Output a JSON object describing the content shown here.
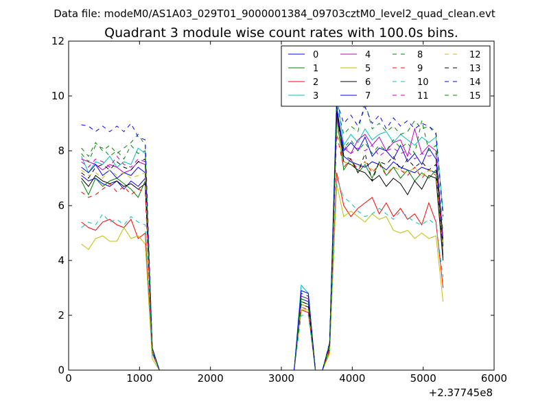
{
  "figure": {
    "suptitle": "Data file: modeM0/AS1A03_029T01_9000001384_09703cztM0_level2_quad_clean.evt",
    "x_offset_label": "+2.37745e8"
  },
  "chart_data": {
    "type": "line",
    "title": "Quadrant 3 module wise count rates with 100.0s bins.",
    "xlabel": "",
    "ylabel": "",
    "xlim": [
      0,
      6000
    ],
    "ylim": [
      0,
      12
    ],
    "x_ticks": [
      "0",
      "1000",
      "2000",
      "3000",
      "4000",
      "5000",
      "6000"
    ],
    "y_ticks": [
      "0",
      "2",
      "4",
      "6",
      "8",
      "10",
      "12"
    ],
    "grid": false,
    "legend_position": "top-right",
    "legend_columns": 4,
    "x_offset": 237745000,
    "x": [
      180,
      280,
      380,
      480,
      580,
      680,
      780,
      880,
      980,
      1080,
      1180,
      1280,
      1380,
      1480,
      1580,
      1680,
      1780,
      1880,
      1980,
      2080,
      2180,
      2280,
      2380,
      2480,
      2580,
      2680,
      2780,
      2880,
      2980,
      3080,
      3180,
      3280,
      3380,
      3480,
      3580,
      3680,
      3780,
      3880,
      3980,
      4080,
      4180,
      4280,
      4380,
      4480,
      4580,
      4680,
      4780,
      4880,
      4980,
      5080,
      5180,
      5280
    ],
    "series": [
      {
        "name": "0",
        "color": "#0000ff",
        "dash": "solid",
        "values": [
          7.1,
          6.9,
          7.0,
          6.8,
          6.7,
          6.9,
          6.6,
          6.9,
          6.7,
          7.0,
          0.7,
          0,
          0,
          0,
          0,
          0,
          0,
          0,
          0,
          0,
          0,
          0,
          0,
          0,
          0,
          0,
          0,
          0,
          0,
          0,
          0,
          2.6,
          2.5,
          0,
          0,
          0.9,
          9.6,
          7.8,
          7.6,
          7.5,
          7.4,
          7.6,
          7.5,
          7.3,
          7.6,
          7.4,
          7.3,
          7.2,
          7.4,
          7.3,
          7.2,
          4.2
        ]
      },
      {
        "name": "1",
        "color": "#008000",
        "dash": "solid",
        "values": [
          6.9,
          6.4,
          7.0,
          6.7,
          6.9,
          7.0,
          6.8,
          6.6,
          6.3,
          6.9,
          0.7,
          0,
          0,
          0,
          0,
          0,
          0,
          0,
          0,
          0,
          0,
          0,
          0,
          0,
          0,
          0,
          0,
          0,
          0,
          0,
          0,
          2.5,
          2.4,
          0,
          0,
          0.8,
          9.2,
          7.3,
          7.7,
          7.2,
          7.5,
          7.0,
          7.6,
          7.1,
          7.4,
          7.0,
          7.3,
          6.9,
          7.2,
          7.0,
          7.3,
          4.1
        ]
      },
      {
        "name": "2",
        "color": "#ff0000",
        "dash": "solid",
        "values": [
          5.4,
          5.2,
          5.1,
          5.4,
          5.5,
          5.3,
          5.2,
          5.5,
          4.8,
          5.0,
          0.6,
          0,
          0,
          0,
          0,
          0,
          0,
          0,
          0,
          0,
          0,
          0,
          0,
          0,
          0,
          0,
          0,
          0,
          0,
          0,
          0,
          2.2,
          2.1,
          0,
          0,
          0.7,
          7.2,
          6.0,
          5.6,
          5.9,
          6.1,
          6.3,
          5.7,
          6.1,
          5.6,
          5.9,
          5.5,
          5.7,
          5.3,
          6.1,
          5.4,
          3.0
        ]
      },
      {
        "name": "3",
        "color": "#00bfbf",
        "dash": "solid",
        "values": [
          7.8,
          7.2,
          7.6,
          7.5,
          7.8,
          7.4,
          7.6,
          7.5,
          8.1,
          7.9,
          0.8,
          0,
          0,
          0,
          0,
          0,
          0,
          0,
          0,
          0,
          0,
          0,
          0,
          0,
          0,
          0,
          0,
          0,
          0,
          0,
          0,
          3.1,
          2.8,
          0,
          0,
          1.0,
          10.1,
          8.2,
          8.6,
          8.3,
          8.8,
          8.4,
          8.6,
          8.7,
          8.3,
          8.6,
          8.4,
          8.2,
          8.5,
          8.3,
          8.5,
          5.8
        ]
      },
      {
        "name": "4",
        "color": "#bf00bf",
        "dash": "solid",
        "values": [
          7.7,
          7.6,
          7.5,
          7.3,
          7.5,
          7.4,
          7.2,
          7.3,
          7.6,
          7.5,
          0.8,
          0,
          0,
          0,
          0,
          0,
          0,
          0,
          0,
          0,
          0,
          0,
          0,
          0,
          0,
          0,
          0,
          0,
          0,
          0,
          0,
          2.7,
          2.6,
          0,
          0,
          0.9,
          9.3,
          8.1,
          7.9,
          8.4,
          8.6,
          8.2,
          8.5,
          8.0,
          8.3,
          8.4,
          7.8,
          8.8,
          7.9,
          8.2,
          8.0,
          4.8
        ]
      },
      {
        "name": "5",
        "color": "#bfbf00",
        "dash": "solid",
        "values": [
          4.6,
          4.4,
          4.8,
          4.9,
          4.7,
          4.7,
          5.2,
          4.8,
          4.9,
          4.6,
          0.4,
          0,
          0,
          0,
          0,
          0,
          0,
          0,
          0,
          0,
          0,
          0,
          0,
          0,
          0,
          0,
          0,
          0,
          0,
          0,
          0,
          2.2,
          2.2,
          0,
          0,
          0.6,
          6.8,
          5.6,
          5.8,
          5.6,
          5.4,
          5.7,
          5.5,
          5.6,
          5.1,
          5.0,
          5.1,
          4.8,
          5.0,
          4.8,
          4.9,
          2.5
        ]
      },
      {
        "name": "6",
        "color": "#000000",
        "dash": "solid",
        "values": [
          7.0,
          6.7,
          7.1,
          6.9,
          6.8,
          6.9,
          6.7,
          6.8,
          6.6,
          6.8,
          0.7,
          0,
          0,
          0,
          0,
          0,
          0,
          0,
          0,
          0,
          0,
          0,
          0,
          0,
          0,
          0,
          0,
          0,
          0,
          0,
          0,
          2.4,
          2.3,
          0,
          0,
          0.8,
          9.5,
          7.6,
          7.5,
          7.3,
          7.2,
          6.9,
          7.1,
          6.7,
          7.0,
          6.8,
          6.4,
          6.9,
          6.6,
          7.1,
          7.0,
          4.0
        ]
      },
      {
        "name": "7",
        "color": "#0000ff",
        "dash": "solid",
        "values": [
          7.4,
          7.2,
          7.5,
          7.1,
          7.3,
          7.0,
          7.2,
          7.1,
          7.4,
          7.2,
          0.7,
          0,
          0,
          0,
          0,
          0,
          0,
          0,
          0,
          0,
          0,
          0,
          0,
          0,
          0,
          0,
          0,
          0,
          0,
          0,
          0,
          2.9,
          2.8,
          0,
          0,
          0.9,
          9.6,
          8.0,
          8.3,
          8.0,
          8.5,
          7.8,
          8.1,
          8.0,
          7.7,
          8.2,
          7.6,
          7.9,
          7.5,
          8.1,
          7.7,
          4.5
        ]
      },
      {
        "name": "8",
        "color": "#008000",
        "dash": "dashed",
        "values": [
          8.1,
          7.8,
          8.3,
          8.0,
          8.2,
          7.9,
          8.1,
          8.3,
          8.6,
          8.2,
          0.8,
          0,
          0,
          0,
          0,
          0,
          0,
          0,
          0,
          0,
          0,
          0,
          0,
          0,
          0,
          0,
          0,
          0,
          0,
          0,
          0,
          2.7,
          2.6,
          0,
          0,
          1.0,
          9.7,
          8.6,
          8.9,
          8.7,
          9.8,
          8.8,
          9.0,
          8.7,
          8.9,
          8.6,
          8.7,
          9.1,
          8.8,
          8.9,
          8.7,
          5.6
        ]
      },
      {
        "name": "9",
        "color": "#ff0000",
        "dash": "dashed",
        "values": [
          6.5,
          6.3,
          6.4,
          6.6,
          6.8,
          6.5,
          6.7,
          6.4,
          6.6,
          6.5,
          0.6,
          0,
          0,
          0,
          0,
          0,
          0,
          0,
          0,
          0,
          0,
          0,
          0,
          0,
          0,
          0,
          0,
          0,
          0,
          0,
          0,
          2.3,
          2.2,
          0,
          0,
          0.8,
          8.6,
          7.4,
          7.7,
          7.3,
          7.6,
          7.2,
          7.5,
          7.1,
          7.4,
          7.3,
          7.1,
          7.4,
          7.0,
          7.3,
          7.1,
          4.3
        ]
      },
      {
        "name": "10",
        "color": "#00bfbf",
        "dash": "dashed",
        "values": [
          5.2,
          5.4,
          5.3,
          5.7,
          5.4,
          5.5,
          5.3,
          5.6,
          5.4,
          5.3,
          0.6,
          0,
          0,
          0,
          0,
          0,
          0,
          0,
          0,
          0,
          0,
          0,
          0,
          0,
          0,
          0,
          0,
          0,
          0,
          0,
          0,
          2.0,
          2.0,
          0,
          0,
          0.7,
          7.0,
          6.3,
          6.1,
          5.8,
          5.6,
          5.7,
          5.9,
          5.7,
          5.5,
          5.8,
          5.6,
          5.4,
          5.3,
          5.5,
          5.3,
          3.4
        ]
      },
      {
        "name": "11",
        "color": "#bf00bf",
        "dash": "dashed",
        "values": [
          7.6,
          7.4,
          7.7,
          7.6,
          7.4,
          7.8,
          7.5,
          7.4,
          7.7,
          7.6,
          0.8,
          0,
          0,
          0,
          0,
          0,
          0,
          0,
          0,
          0,
          0,
          0,
          0,
          0,
          0,
          0,
          0,
          0,
          0,
          0,
          0,
          2.6,
          2.5,
          0,
          0,
          0.9,
          9.1,
          8.2,
          7.9,
          8.1,
          8.0,
          8.2,
          7.8,
          8.0,
          8.1,
          7.9,
          8.0,
          7.7,
          7.9,
          7.8,
          7.9,
          4.7
        ]
      },
      {
        "name": "12",
        "color": "#bfbf00",
        "dash": "dashed",
        "values": [
          7.3,
          7.1,
          7.2,
          7.0,
          7.3,
          7.1,
          7.2,
          7.0,
          7.1,
          7.2,
          0.7,
          0,
          0,
          0,
          0,
          0,
          0,
          0,
          0,
          0,
          0,
          0,
          0,
          0,
          0,
          0,
          0,
          0,
          0,
          0,
          0,
          2.4,
          2.3,
          0,
          0,
          0.8,
          8.8,
          7.6,
          7.5,
          7.4,
          7.6,
          7.3,
          7.5,
          7.2,
          7.4,
          7.3,
          7.2,
          7.4,
          7.1,
          7.3,
          7.2,
          4.4
        ]
      },
      {
        "name": "13",
        "color": "#000000",
        "dash": "dashed",
        "values": [
          7.2,
          7.0,
          7.4,
          7.5,
          7.3,
          7.6,
          7.4,
          7.3,
          7.6,
          7.7,
          0.8,
          0,
          0,
          0,
          0,
          0,
          0,
          0,
          0,
          0,
          0,
          0,
          0,
          0,
          0,
          0,
          0,
          0,
          0,
          0,
          0,
          2.5,
          2.4,
          0,
          0,
          0.9,
          9.4,
          7.8,
          7.7,
          7.2,
          7.9,
          6.9,
          7.6,
          7.5,
          7.8,
          7.3,
          7.7,
          7.4,
          7.6,
          7.3,
          7.5,
          4.6
        ]
      },
      {
        "name": "14",
        "color": "#0000ff",
        "dash": "dashed",
        "values": [
          8.95,
          8.9,
          8.7,
          8.9,
          8.7,
          8.9,
          8.7,
          9.0,
          8.5,
          8.4,
          0.8,
          0,
          0,
          0,
          0,
          0,
          0,
          0,
          0,
          0,
          0,
          0,
          0,
          0,
          0,
          0,
          0,
          0,
          0,
          0,
          0,
          2.8,
          2.7,
          0,
          0,
          1.0,
          9.8,
          9.0,
          9.3,
          8.9,
          9.6,
          9.0,
          9.3,
          8.8,
          9.2,
          8.9,
          9.1,
          8.8,
          9.0,
          8.9,
          8.6,
          5.7
        ]
      },
      {
        "name": "15",
        "color": "#008000",
        "dash": "dashed",
        "values": [
          7.9,
          7.6,
          8.2,
          8.1,
          7.8,
          8.0,
          7.7,
          8.2,
          7.9,
          8.0,
          0.8,
          0,
          0,
          0,
          0,
          0,
          0,
          0,
          0,
          0,
          0,
          0,
          0,
          0,
          0,
          0,
          0,
          0,
          0,
          0,
          0,
          2.6,
          2.5,
          0,
          0,
          0.9,
          9.0,
          8.1,
          8.4,
          8.0,
          8.3,
          7.9,
          8.2,
          8.0,
          8.4,
          8.1,
          8.3,
          7.9,
          9.1,
          8.0,
          8.2,
          5.0
        ]
      }
    ]
  }
}
